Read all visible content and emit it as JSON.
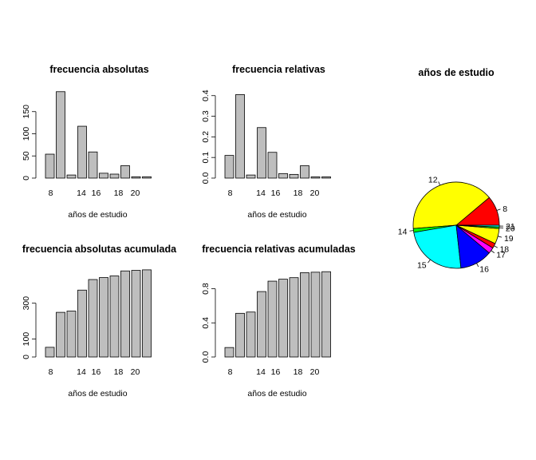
{
  "chart_data": [
    {
      "type": "bar",
      "title": "frecuencia absolutas",
      "xlabel": "años de estudio",
      "ylabel": "",
      "categories": [
        "8",
        "12",
        "14",
        "15",
        "16",
        "17",
        "18",
        "19",
        "20",
        "21"
      ],
      "x_tick_labels": [
        "8",
        "14",
        "16",
        "18",
        "20"
      ],
      "y_ticks": [
        0,
        50,
        100,
        150
      ],
      "ylim": [
        0,
        200
      ],
      "values": [
        54,
        195,
        7,
        117,
        59,
        11,
        9,
        28,
        3,
        3
      ],
      "bar_color": "#bebebe"
    },
    {
      "type": "bar",
      "title": "frecuencia relativas",
      "xlabel": "años de estudio",
      "ylabel": "",
      "categories": [
        "8",
        "12",
        "14",
        "15",
        "16",
        "17",
        "18",
        "19",
        "20",
        "21"
      ],
      "x_tick_labels": [
        "8",
        "14",
        "16",
        "18",
        "20"
      ],
      "y_ticks": [
        0.0,
        0.1,
        0.2,
        0.3,
        0.4
      ],
      "ylim": [
        0,
        0.43
      ],
      "values": [
        0.11,
        0.405,
        0.015,
        0.245,
        0.125,
        0.022,
        0.018,
        0.06,
        0.006,
        0.006
      ],
      "bar_color": "#bebebe"
    },
    {
      "type": "pie",
      "title": "años de estudio",
      "labels": [
        "8",
        "12",
        "14",
        "15",
        "16",
        "17",
        "18",
        "19",
        "20",
        "21"
      ],
      "values": [
        54,
        195,
        7,
        117,
        59,
        11,
        9,
        28,
        3,
        3
      ],
      "colors": [
        "#ff0000",
        "#ffff00",
        "#00ff00",
        "#00ffff",
        "#0000ff",
        "#ff00ff",
        "#ff0000",
        "#ffff00",
        "#00ff00",
        "#00ffff"
      ]
    },
    {
      "type": "bar",
      "title": "frecuencia absolutas acumulada",
      "xlabel": "años de estudio",
      "ylabel": "",
      "categories": [
        "8",
        "12",
        "14",
        "15",
        "16",
        "17",
        "18",
        "19",
        "20",
        "21"
      ],
      "x_tick_labels": [
        "8",
        "14",
        "16",
        "18",
        "20"
      ],
      "y_ticks": [
        0,
        100,
        300
      ],
      "ylim": [
        0,
        490
      ],
      "values": [
        54,
        249,
        256,
        373,
        432,
        443,
        452,
        480,
        483,
        486
      ],
      "bar_color": "#bebebe"
    },
    {
      "type": "bar",
      "title": "frecuencia relativas acumuladas",
      "xlabel": "años de estudio",
      "ylabel": "",
      "categories": [
        "8",
        "12",
        "14",
        "15",
        "16",
        "17",
        "18",
        "19",
        "20",
        "21"
      ],
      "x_tick_labels": [
        "8",
        "14",
        "16",
        "18",
        "20"
      ],
      "y_ticks": [
        0.0,
        0.4,
        0.8
      ],
      "ylim": [
        0,
        1.03
      ],
      "values": [
        0.111,
        0.512,
        0.527,
        0.767,
        0.889,
        0.912,
        0.93,
        0.988,
        0.994,
        1.0
      ],
      "bar_color": "#bebebe"
    }
  ]
}
